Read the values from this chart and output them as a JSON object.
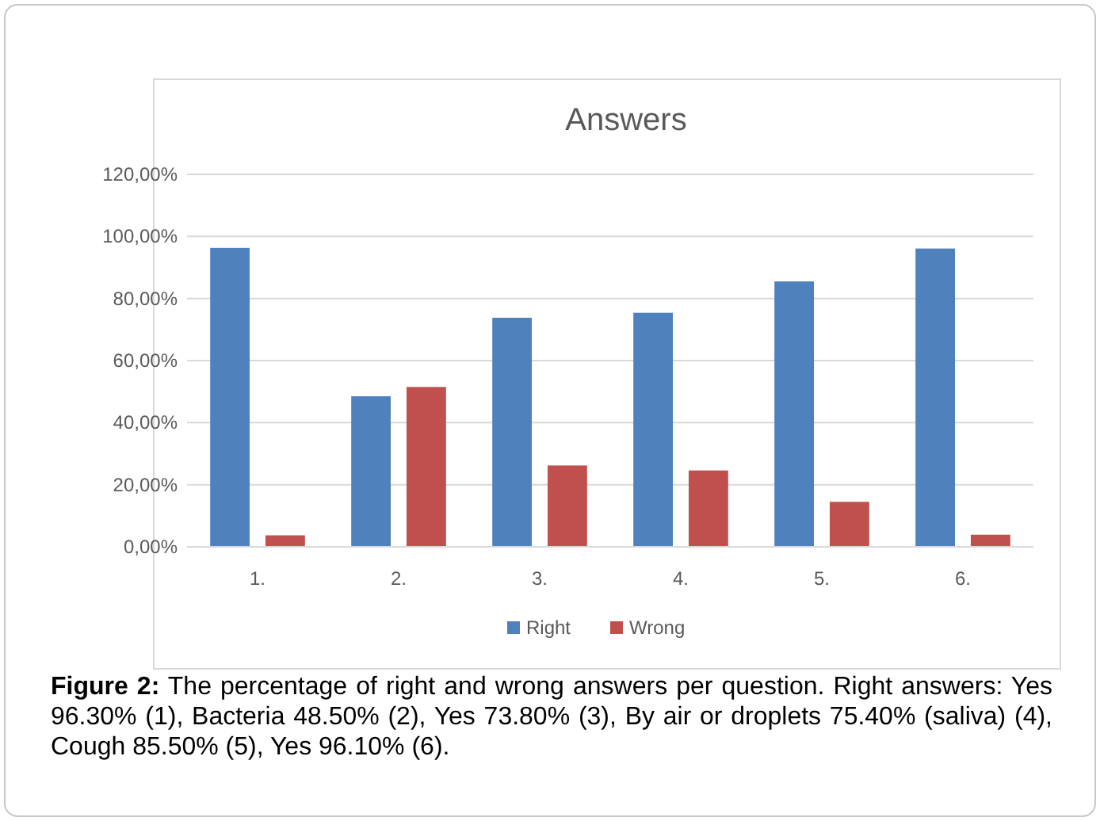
{
  "chart_data": {
    "type": "bar",
    "title": "Answers",
    "categories": [
      "1.",
      "2.",
      "3.",
      "4.",
      "5.",
      "6."
    ],
    "series": [
      {
        "name": "Right",
        "color": "#4f81bd",
        "values": [
          96.3,
          48.5,
          73.8,
          75.4,
          85.5,
          96.1
        ]
      },
      {
        "name": "Wrong",
        "color": "#c0504d",
        "values": [
          3.7,
          51.5,
          26.2,
          24.6,
          14.5,
          3.9
        ]
      }
    ],
    "ylim": [
      0,
      120
    ],
    "yticks": [
      {
        "value": 0,
        "label": "0,00%"
      },
      {
        "value": 20,
        "label": "20,00%"
      },
      {
        "value": 40,
        "label": "40,00%"
      },
      {
        "value": 60,
        "label": "60,00%"
      },
      {
        "value": 80,
        "label": "80,00%"
      },
      {
        "value": 100,
        "label": "100,00%"
      },
      {
        "value": 120,
        "label": "120,00%"
      }
    ],
    "grid": "y",
    "legend": "bottom",
    "annotations": [
      "Figure 2: The percentage of right and wrong answers per question. Right answers: Yes 96.30% (1), Bacteria 48.50% (2), Yes 73.80% (3), By air or droplets 75.40% (saliva) (4), Cough 85.50% (5), Yes 96.10% (6)."
    ]
  }
}
